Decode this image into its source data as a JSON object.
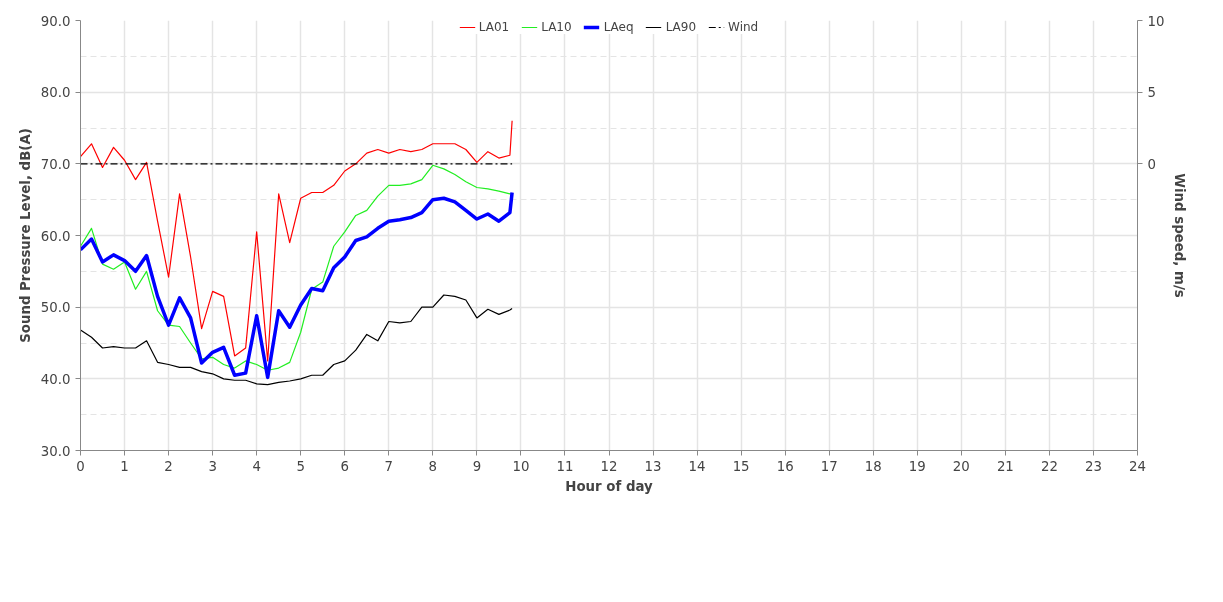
{
  "chart_data": {
    "type": "line",
    "xlabel": "Hour of day",
    "ylabel": "Sound Pressure Level, dB(A)",
    "y2label": "Wind speed, m/s",
    "x": [
      0,
      0.25,
      0.5,
      0.75,
      1,
      1.25,
      1.5,
      1.75,
      2,
      2.25,
      2.5,
      2.75,
      3,
      3.25,
      3.5,
      3.75,
      4,
      4.25,
      4.5,
      4.75,
      5,
      5.25,
      5.5,
      5.75,
      6,
      6.25,
      6.5,
      6.75,
      7,
      7.25,
      7.5,
      7.75,
      8,
      8.25,
      8.5,
      8.75,
      9,
      9.25,
      9.5,
      9.75,
      9.8
    ],
    "series": [
      {
        "name": "LA01",
        "color": "#ff0000",
        "values": [
          71.0,
          72.8,
          69.5,
          72.3,
          70.5,
          67.8,
          70.2,
          62.0,
          54.2,
          65.8,
          57.0,
          47.0,
          52.2,
          51.5,
          43.2,
          44.3,
          60.5,
          42.5,
          65.8,
          59.0,
          65.2,
          66.0,
          66.0,
          67.0,
          69.0,
          70.0,
          71.5,
          72.0,
          71.5,
          72.0,
          71.7,
          72.0,
          72.8,
          72.8,
          72.8,
          72.0,
          70.2,
          71.7,
          70.8,
          71.2,
          76.0
        ]
      },
      {
        "name": "LA10",
        "color": "#22ee22",
        "values": [
          58.5,
          61.0,
          56.0,
          55.3,
          56.3,
          52.5,
          55.0,
          49.5,
          47.5,
          47.3,
          45.0,
          42.8,
          43.0,
          42.0,
          41.5,
          42.5,
          42.0,
          41.2,
          41.5,
          42.3,
          46.5,
          52.5,
          53.5,
          58.5,
          60.5,
          62.8,
          63.5,
          65.5,
          67.0,
          67.0,
          67.2,
          67.8,
          69.8,
          69.3,
          68.5,
          67.5,
          66.7,
          66.5,
          66.2,
          65.8,
          65.8
        ]
      },
      {
        "name": "LAeq",
        "color": "#0000ff",
        "values": [
          58.0,
          59.5,
          56.3,
          57.3,
          56.5,
          55.0,
          57.2,
          51.5,
          47.5,
          51.3,
          48.5,
          42.2,
          43.7,
          44.4,
          40.5,
          40.8,
          48.8,
          40.2,
          49.5,
          47.2,
          50.3,
          52.6,
          52.3,
          55.5,
          57.0,
          59.3,
          59.8,
          61.0,
          62.0,
          62.2,
          62.5,
          63.2,
          65.0,
          65.2,
          64.7,
          63.5,
          62.3,
          63.0,
          62.0,
          63.2,
          66.0
        ]
      },
      {
        "name": "LA90",
        "color": "#000000",
        "values": [
          46.8,
          45.8,
          44.3,
          44.5,
          44.3,
          44.3,
          45.3,
          42.3,
          42.0,
          41.6,
          41.6,
          41.0,
          40.7,
          40.0,
          39.8,
          39.8,
          39.3,
          39.2,
          39.5,
          39.7,
          40.0,
          40.5,
          40.5,
          42.0,
          42.5,
          44.0,
          46.2,
          45.3,
          48.0,
          47.8,
          48.0,
          50.0,
          50.0,
          51.7,
          51.5,
          51.0,
          48.5,
          49.7,
          49.0,
          49.6,
          49.8
        ]
      },
      {
        "name": "Wind",
        "color": "#000000",
        "axis": "y2",
        "line_style": "dashdot",
        "values": [
          0,
          0,
          0,
          0,
          0,
          0,
          0,
          0,
          0,
          0,
          0,
          0,
          0,
          0,
          0,
          0,
          0,
          0,
          0,
          0,
          0,
          0,
          0,
          0,
          0,
          0,
          0,
          0,
          0,
          0,
          0,
          0,
          0,
          0,
          0,
          0,
          0,
          0,
          0,
          0,
          0
        ]
      }
    ],
    "xlim": [
      0,
      24
    ],
    "xticks": [
      0,
      1,
      2,
      3,
      4,
      5,
      6,
      7,
      8,
      9,
      10,
      11,
      12,
      13,
      14,
      15,
      16,
      17,
      18,
      19,
      20,
      21,
      22,
      23,
      24
    ],
    "ylim": [
      30,
      90
    ],
    "yticks": [
      {
        "value": 30,
        "label": "30.0"
      },
      {
        "value": 40,
        "label": "40.0"
      },
      {
        "value": 50,
        "label": "50.0"
      },
      {
        "value": 60,
        "label": "60.0"
      },
      {
        "value": 70,
        "label": "70.0"
      },
      {
        "value": 80,
        "label": "80.0"
      },
      {
        "value": 90,
        "label": "90.0"
      }
    ],
    "y2lim": [
      -20,
      10
    ],
    "y2ticks": [
      0,
      5,
      10
    ],
    "grid": true,
    "legend": "top",
    "marker": "none"
  }
}
